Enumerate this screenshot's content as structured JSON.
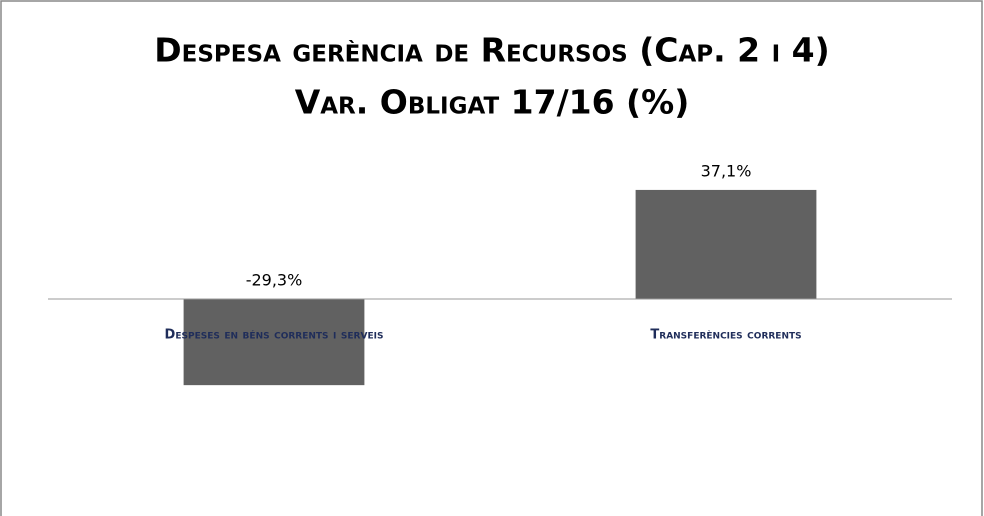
{
  "chart_data": {
    "type": "bar",
    "title": "Despesa gerència de Recursos (Cap. 2 i 4)",
    "subtitle": "Var. Obligat 17/16 (%)",
    "categories": [
      "Despeses en béns corrents i serveis",
      "Transferències corrents"
    ],
    "values": [
      -29.3,
      37.1
    ],
    "value_labels": [
      "-29,3%",
      "37,1%"
    ],
    "color": "#616161",
    "ylim": [
      -60,
      40
    ]
  }
}
